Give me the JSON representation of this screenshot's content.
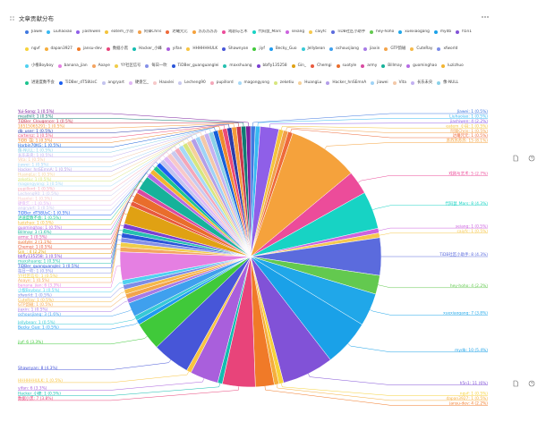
{
  "panel": {
    "title": "文章贡献分布"
  },
  "chart_data": {
    "type": "pie",
    "legend_placement": "top",
    "slices": [
      {
        "name": "Jiawei",
        "value": 1,
        "pct": "0.5%",
        "color": "#3f78e0"
      },
      {
        "name": "Liuhaoiao",
        "value": 1,
        "pct": "0.5%",
        "color": "#37b8f2"
      },
      {
        "name": "jiashiwen",
        "value": 4,
        "pct": "2.2%",
        "color": "#8f5fe8"
      },
      {
        "name": "eatem_小羽",
        "value": 1,
        "pct": "0.5%",
        "color": "#f4c43c"
      },
      {
        "name": "阿锋Chris",
        "value": 1,
        "pct": "0.5%",
        "color": "#f2a04a"
      },
      {
        "name": "达曦咒元",
        "value": 1,
        "pct": "0.5%",
        "color": "#ee6a3a"
      },
      {
        "name": "苏苏苏苏苏",
        "value": 15,
        "pct": "8.1%",
        "color": "#f5a23c"
      },
      {
        "name": "戏剧与艺术",
        "value": 5,
        "pct": "2.7%",
        "color": "#ec4c9a"
      },
      {
        "name": "代码鼠_Mars",
        "value": 8,
        "pct": "4.3%",
        "color": "#17d3c4"
      },
      {
        "name": "seiang",
        "value": 1,
        "pct": "0.5%",
        "color": "#cc63df"
      },
      {
        "name": "caiyfc",
        "value": 1,
        "pct": "0.5%",
        "color": "#f6c84e"
      },
      {
        "name": "TiDB社区小助手",
        "value": 8,
        "pct": "4.3%",
        "color": "#5b6bdd"
      },
      {
        "name": "hey-hoho",
        "value": 4,
        "pct": "2.2%",
        "color": "#63c94f"
      },
      {
        "name": "xuexiaogang",
        "value": 7,
        "pct": "3.8%",
        "color": "#20a7e9"
      },
      {
        "name": "mydb",
        "value": 10,
        "pct": "5.4%",
        "color": "#1aa1e8"
      },
      {
        "name": "h5n1",
        "value": 11,
        "pct": "6%",
        "color": "#8152d7"
      },
      {
        "name": "ngvf",
        "value": 1,
        "pct": "0.5%",
        "color": "#f7d23a"
      },
      {
        "name": "dapan3927",
        "value": 1,
        "pct": "0.5%",
        "color": "#f5ae3c"
      },
      {
        "name": "jansu-dev",
        "value": 4,
        "pct": "2.2%",
        "color": "#f07a28"
      },
      {
        "name": "数据小黑",
        "value": 7,
        "pct": "3.8%",
        "color": "#e8447a"
      },
      {
        "name": "Hacker_小峰",
        "value": 1,
        "pct": "0.5%",
        "color": "#13bdb0"
      },
      {
        "name": "yifan",
        "value": 6,
        "pct": "3.3%",
        "color": "#a95fdc"
      },
      {
        "name": "HHHHHHULK",
        "value": 1,
        "pct": "0.5%",
        "color": "#f8c440"
      },
      {
        "name": "Shawnyan",
        "value": 8,
        "pct": "4.3%",
        "color": "#4756d8"
      },
      {
        "name": "jiyf",
        "value": 6,
        "pct": "3.3%",
        "color": "#40c93a"
      },
      {
        "name": "Becky_Guo",
        "value": 1,
        "pct": "0.5%",
        "color": "#1f9bf0"
      },
      {
        "name": "Jellybean",
        "value": 1,
        "pct": "0.5%",
        "color": "#37c9d6"
      },
      {
        "name": "ochousjiang",
        "value": 3,
        "pct": "1.6%",
        "color": "#3fa0ee"
      },
      {
        "name": "jiaxin",
        "value": 1,
        "pct": "0.5%",
        "color": "#a77be6"
      },
      {
        "name": "GTP韵磁",
        "value": 1,
        "pct": "0.5%",
        "color": "#f3a44a"
      },
      {
        "name": "CuteRay",
        "value": 1,
        "pct": "0.5%",
        "color": "#f5b94a"
      },
      {
        "name": "xfworld",
        "value": 1,
        "pct": "0.5%",
        "color": "#7c8ce6"
      },
      {
        "name": "小根Boyboy",
        "value": 1,
        "pct": "0.5%",
        "color": "#4fd1f0"
      },
      {
        "name": "banana_jian",
        "value": 6,
        "pct": "3.3%",
        "color": "#e57fe2"
      },
      {
        "name": "Aoaye",
        "value": 1,
        "pct": "0.5%",
        "color": "#f4a460"
      },
      {
        "name": "YY社区信号",
        "value": 1,
        "pct": "0.5%",
        "color": "#f0cd49"
      },
      {
        "name": "每日一吹",
        "value": 1,
        "pct": "0.5%",
        "color": "#8590e8"
      },
      {
        "name": "TiDBer_guanguanglei",
        "value": 1,
        "pct": "0.5%",
        "color": "#2a55d9"
      },
      {
        "name": "maxshuang",
        "value": 1,
        "pct": "0.5%",
        "color": "#26c0b0"
      },
      {
        "name": "bbfly135258",
        "value": 1,
        "pct": "0.5%",
        "color": "#7a3fd1"
      },
      {
        "name": "Gin_",
        "value": 4,
        "pct": "2.2%",
        "color": "#e0a113"
      },
      {
        "name": "Chemgi",
        "value": 1,
        "pct": "0.5%",
        "color": "#e85a3e"
      },
      {
        "name": "suotyle",
        "value": 2,
        "pct": "1.1%",
        "color": "#e96d2c"
      },
      {
        "name": "army",
        "value": 1,
        "pct": "0.5%",
        "color": "#d94aa1"
      },
      {
        "name": "Billmay",
        "value": 3,
        "pct": "1.6%",
        "color": "#16b29a"
      },
      {
        "name": "guominghao",
        "value": 1,
        "pct": "0.5%",
        "color": "#b56be4"
      },
      {
        "name": "luzizhuo",
        "value": 1,
        "pct": "0.5%",
        "color": "#f2b531"
      },
      {
        "name": "进速度数不会",
        "value": 1,
        "pct": "0.5%",
        "color": "#1cc48f"
      },
      {
        "name": "TiDBer_dT58UsC",
        "value": 1,
        "pct": "0.5%",
        "color": "#1b5ff0"
      },
      {
        "name": "angryart",
        "value": 1,
        "pct": "0.5%",
        "color": "#c4c4ef"
      },
      {
        "name": "硬盘乞_",
        "value": 1,
        "pct": "0.5%",
        "color": "#e0b7f5"
      },
      {
        "name": "Haaxlei",
        "value": 1,
        "pct": "0.5%",
        "color": "#f7c9c9"
      },
      {
        "name": "Lecheng90",
        "value": 1,
        "pct": "0.5%",
        "color": "#c9c9ef"
      },
      {
        "name": "pupillord",
        "value": 1,
        "pct": "0.5%",
        "color": "#f4a7b9"
      },
      {
        "name": "magongyong",
        "value": 1,
        "pct": "0.5%",
        "color": "#a6d9f7"
      },
      {
        "name": "zeketiu",
        "value": 1,
        "pct": "0.5%",
        "color": "#d7e67e"
      },
      {
        "name": "HuangLu",
        "value": 1,
        "pct": "0.5%",
        "color": "#f5d19a"
      },
      {
        "name": "Hacker_hnSEmnA",
        "value": 1,
        "pct": "0.5%",
        "color": "#b39ee8"
      },
      {
        "name": "jiawei",
        "value": 1,
        "pct": "0.5%",
        "color": "#9fd3f6"
      },
      {
        "name": "Vita",
        "value": 1,
        "pct": "0.5%",
        "color": "#f3c8a8"
      },
      {
        "name": "长乐未央",
        "value": 1,
        "pct": "0.5%",
        "color": "#c3b1f1"
      },
      {
        "name": "像-NULL",
        "value": 1,
        "pct": "0.5%",
        "color": "#8ad1e8"
      },
      {
        "name": "Harbin70KG",
        "value": 1,
        "pct": "0.5%",
        "color": "#1660d8"
      },
      {
        "name": "TiDB_强",
        "value": 1,
        "pct": "0.5%",
        "color": "#ee8a2c"
      },
      {
        "name": "cartersz",
        "value": 1,
        "pct": "0.5%",
        "color": "#ec4b77"
      },
      {
        "name": "db_user",
        "value": 1,
        "pct": "0.5%",
        "color": "#2b3ca8"
      },
      {
        "name": "18515065291",
        "value": 1,
        "pct": "0.5%",
        "color": "#f59a3a"
      },
      {
        "name": "TiDBer_Clougence",
        "value": 1,
        "pct": "0.5%",
        "color": "#c9374d"
      },
      {
        "name": "meathill",
        "value": 1,
        "pct": "0.5%",
        "color": "#0f7a73"
      },
      {
        "name": "Yui-Song",
        "value": 1,
        "pct": "0.5%",
        "color": "#7a1f9e"
      }
    ]
  }
}
